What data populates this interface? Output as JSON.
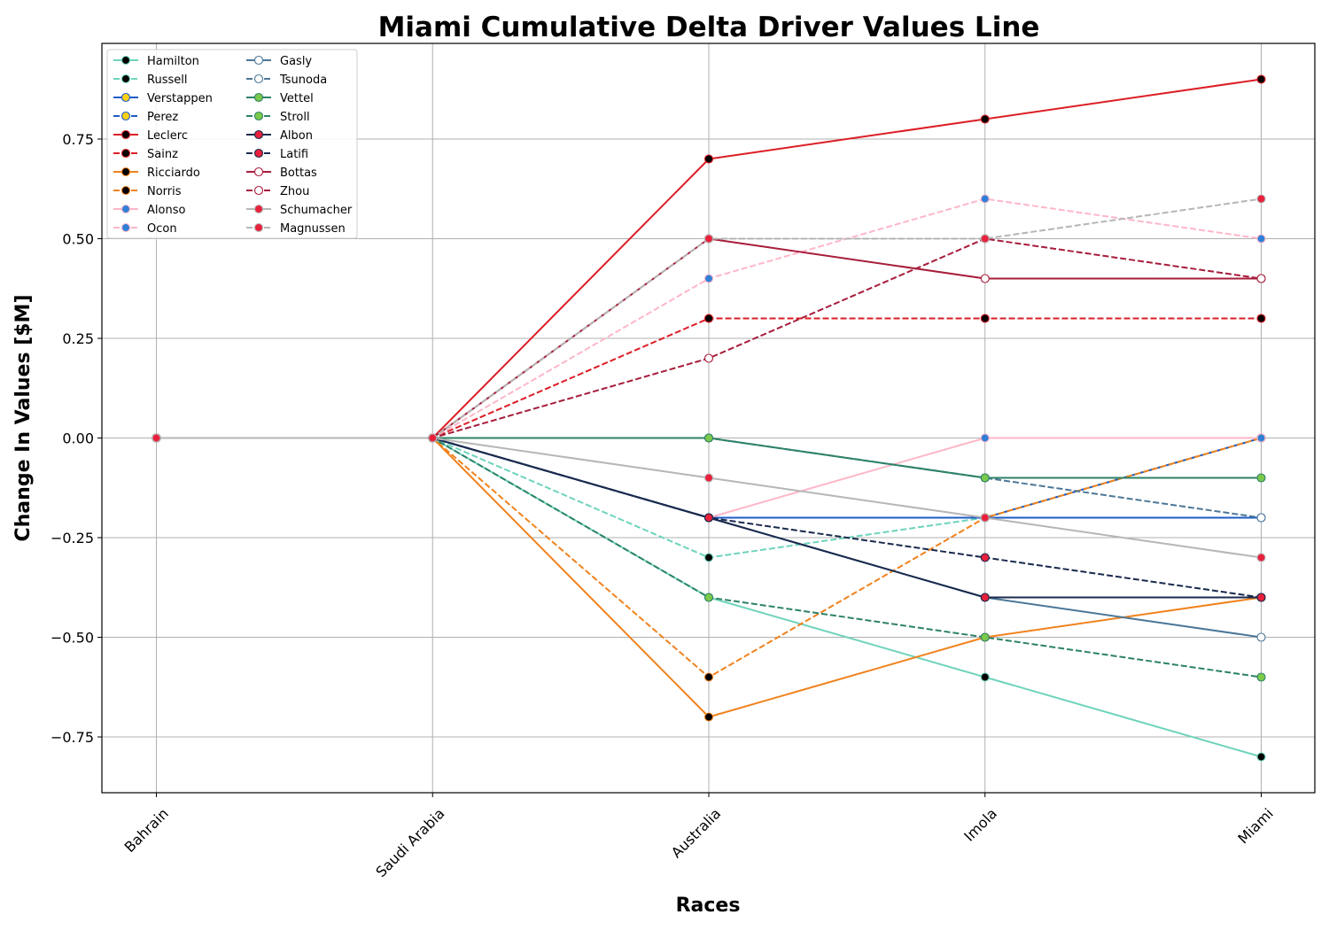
{
  "chart_data": {
    "type": "line",
    "title": "Miami Cumulative Delta Driver Values Line",
    "xlabel": "Races",
    "ylabel": "Change In Values [$M]",
    "categories": [
      "Bahrain",
      "Saudi Arabia",
      "Australia",
      "Imola",
      "Miami"
    ],
    "ylim": [
      -0.89,
      0.99
    ],
    "yticks": [
      -0.75,
      -0.5,
      -0.25,
      0.0,
      0.25,
      0.5,
      0.75
    ],
    "ytick_labels": [
      "−0.75",
      "−0.50",
      "−0.25",
      "0.00",
      "0.25",
      "0.50",
      "0.75"
    ],
    "grid": true,
    "legend_position": "upper-left",
    "legend_columns": 2,
    "series": [
      {
        "name": "Hamilton",
        "values": [
          0,
          0,
          -0.4,
          -0.6,
          -0.8
        ],
        "color": "#6ed3bc",
        "dash": "solid",
        "marker_fill": "#000000"
      },
      {
        "name": "Russell",
        "values": [
          0,
          0,
          -0.3,
          -0.2,
          0.0
        ],
        "color": "#6ed3bc",
        "dash": "dashed",
        "marker_fill": "#000000"
      },
      {
        "name": "Verstappen",
        "values": [
          0,
          0,
          -0.2,
          -0.2,
          -0.2
        ],
        "color": "#1e5bc6",
        "dash": "solid",
        "marker_fill": "#fcd116"
      },
      {
        "name": "Perez",
        "values": [
          0,
          0,
          -0.2,
          -0.2,
          0.0
        ],
        "color": "#1e5bc6",
        "dash": "dashed",
        "marker_fill": "#fcd116"
      },
      {
        "name": "Leclerc",
        "values": [
          0,
          0,
          0.7,
          0.8,
          0.9
        ],
        "color": "#dc1e26",
        "dash": "solid",
        "marker_fill": "#000000"
      },
      {
        "name": "Sainz",
        "values": [
          0,
          0,
          0.3,
          0.3,
          0.3
        ],
        "color": "#dc1e26",
        "dash": "dashed",
        "marker_fill": "#000000"
      },
      {
        "name": "Ricciardo",
        "values": [
          0,
          0,
          -0.7,
          -0.5,
          -0.4
        ],
        "color": "#f0821e",
        "dash": "solid",
        "marker_fill": "#000000"
      },
      {
        "name": "Norris",
        "values": [
          0,
          0,
          -0.6,
          -0.2,
          0.0
        ],
        "color": "#f0821e",
        "dash": "dashed",
        "marker_fill": "#000000"
      },
      {
        "name": "Alonso",
        "values": [
          0,
          0,
          -0.2,
          0.0,
          0.0
        ],
        "color": "#fdb7c8",
        "dash": "solid",
        "marker_fill": "#2f7fd8"
      },
      {
        "name": "Ocon",
        "values": [
          0,
          0,
          0.4,
          0.6,
          0.5
        ],
        "color": "#fdb7c8",
        "dash": "dashed",
        "marker_fill": "#2f7fd8"
      },
      {
        "name": "Gasly",
        "values": [
          0,
          0,
          -0.2,
          -0.4,
          -0.5
        ],
        "color": "#4b7797",
        "dash": "solid",
        "marker_fill": "#ffffff"
      },
      {
        "name": "Tsunoda",
        "values": [
          0,
          0,
          0.0,
          -0.1,
          -0.2
        ],
        "color": "#4b7797",
        "dash": "dashed",
        "marker_fill": "#ffffff"
      },
      {
        "name": "Vettel",
        "values": [
          0,
          0,
          0.0,
          -0.1,
          -0.1
        ],
        "color": "#2d8268",
        "dash": "solid",
        "marker_fill": "#7bc94a"
      },
      {
        "name": "Stroll",
        "values": [
          0,
          0,
          -0.4,
          -0.5,
          -0.6
        ],
        "color": "#2d8268",
        "dash": "dashed",
        "marker_fill": "#7bc94a"
      },
      {
        "name": "Albon",
        "values": [
          0,
          0,
          -0.2,
          -0.4,
          -0.4
        ],
        "color": "#1a2a4d",
        "dash": "solid",
        "marker_fill": "#e8203c"
      },
      {
        "name": "Latifi",
        "values": [
          0,
          0,
          -0.2,
          -0.3,
          -0.4
        ],
        "color": "#1a2a4d",
        "dash": "dashed",
        "marker_fill": "#e8203c"
      },
      {
        "name": "Bottas",
        "values": [
          0,
          0,
          0.5,
          0.4,
          0.4
        ],
        "color": "#a71d3b",
        "dash": "solid",
        "marker_fill": "#ffffff"
      },
      {
        "name": "Zhou",
        "values": [
          0,
          0,
          0.2,
          0.5,
          0.4
        ],
        "color": "#a71d3b",
        "dash": "dashed",
        "marker_fill": "#ffffff"
      },
      {
        "name": "Schumacher",
        "values": [
          0,
          0,
          -0.1,
          -0.2,
          -0.3
        ],
        "color": "#b6b6b6",
        "dash": "solid",
        "marker_fill": "#e8203c"
      },
      {
        "name": "Magnussen",
        "values": [
          0,
          0,
          0.5,
          0.5,
          0.6
        ],
        "color": "#b6b6b6",
        "dash": "dashed",
        "marker_fill": "#e8203c"
      }
    ]
  }
}
